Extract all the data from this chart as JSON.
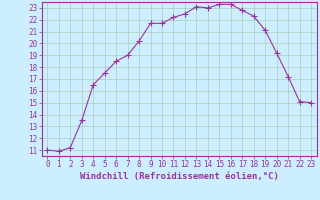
{
  "x": [
    0,
    1,
    2,
    3,
    4,
    5,
    6,
    7,
    8,
    9,
    10,
    11,
    12,
    13,
    14,
    15,
    16,
    17,
    18,
    19,
    20,
    21,
    22,
    23
  ],
  "y": [
    11,
    10.9,
    11.2,
    13.5,
    16.5,
    17.5,
    18.5,
    19.0,
    20.2,
    21.7,
    21.7,
    22.2,
    22.5,
    23.1,
    23.0,
    23.3,
    23.3,
    22.8,
    22.3,
    21.1,
    19.2,
    17.2,
    15.1,
    15.0
  ],
  "line_color": "#993399",
  "marker": "+",
  "marker_size": 4,
  "background_color": "#cceeff",
  "grid_color": "#aaccbb",
  "xlabel": "Windchill (Refroidissement éolien,°C)",
  "xlim": [
    -0.5,
    23.5
  ],
  "ylim": [
    10.5,
    23.5
  ],
  "xticks": [
    0,
    1,
    2,
    3,
    4,
    5,
    6,
    7,
    8,
    9,
    10,
    11,
    12,
    13,
    14,
    15,
    16,
    17,
    18,
    19,
    20,
    21,
    22,
    23
  ],
  "yticks": [
    11,
    12,
    13,
    14,
    15,
    16,
    17,
    18,
    19,
    20,
    21,
    22,
    23
  ],
  "font_color": "#993399",
  "tick_fontsize": 5.5,
  "label_fontsize": 6.5
}
